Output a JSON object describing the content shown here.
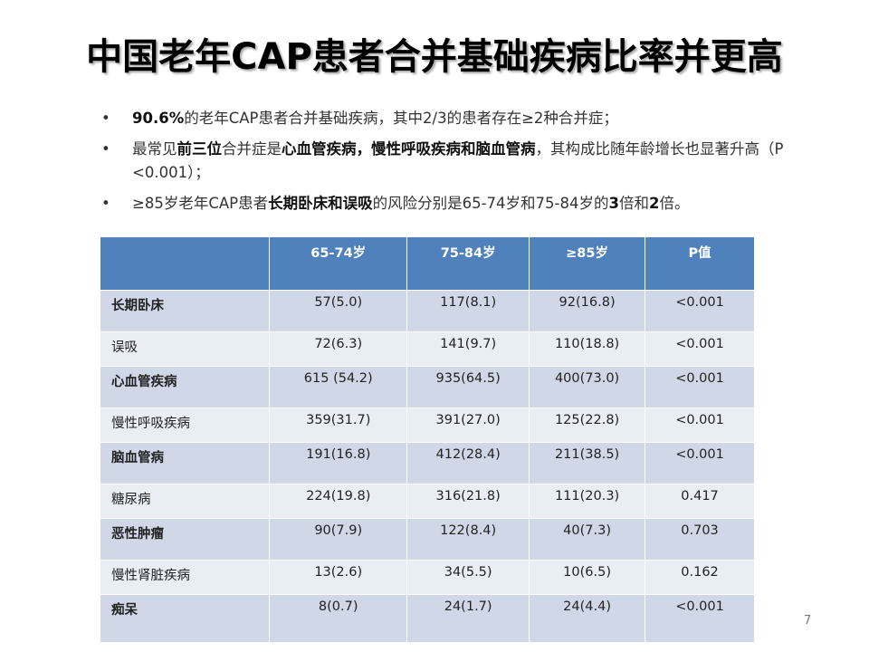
{
  "title": "中国老年CAP患者合并基础疾病比率并更高",
  "bullets": [
    {
      "parts": [
        {
          "text": "90.6%",
          "bold": true
        },
        {
          "text": "的老年CAP患者合并基础疾病，其中2/3的患者存在≥2种合并症；",
          "bold": false
        }
      ]
    },
    {
      "parts": [
        {
          "text": "最常见",
          "bold": false
        },
        {
          "text": "前三位",
          "bold": true
        },
        {
          "text": "合并症是",
          "bold": false
        },
        {
          "text": "心血管疾病，慢性呼吸疾病和脑血管病",
          "bold": true
        },
        {
          "text": "，其构成比随年龄增长也显著升高（P <0.001）；",
          "bold": false
        }
      ]
    },
    {
      "parts": [
        {
          "text": "≥85岁老年CAP患者",
          "bold": false
        },
        {
          "text": "长期卧床和误吸",
          "bold": true
        },
        {
          "text": "的风险分别是65-74岁和75-84岁的",
          "bold": false
        },
        {
          "text": "3",
          "bold": true
        },
        {
          "text": "倍和",
          "bold": false
        },
        {
          "text": "2",
          "bold": true
        },
        {
          "text": "倍。",
          "bold": false
        }
      ]
    }
  ],
  "table": {
    "headers": [
      "",
      "65-74岁",
      "75-84岁",
      "≥85岁",
      "P值"
    ],
    "rows": [
      {
        "label": "长期卧床",
        "bold": true,
        "cells": [
          "57(5.0)",
          "117(8.1)",
          "92(16.8)",
          "<0.001"
        ]
      },
      {
        "label": "误吸",
        "bold": false,
        "cells": [
          "72(6.3)",
          "141(9.7)",
          "110(18.8)",
          "<0.001"
        ]
      },
      {
        "label": "心血管疾病",
        "bold": true,
        "cells": [
          "615 (54.2)",
          "935(64.5)",
          "400(73.0)",
          "<0.001"
        ]
      },
      {
        "label": "慢性呼吸疾病",
        "bold": false,
        "cells": [
          "359(31.7)",
          "391(27.0)",
          "125(22.8)",
          "<0.001"
        ]
      },
      {
        "label": "脑血管病",
        "bold": true,
        "cells": [
          "191(16.8)",
          "412(28.4)",
          "211(38.5)",
          "<0.001"
        ]
      },
      {
        "label": "糖尿病",
        "bold": false,
        "cells": [
          "224(19.8)",
          "316(21.8)",
          "111(20.3)",
          "0.417"
        ]
      },
      {
        "label": "恶性肿瘤",
        "bold": true,
        "cells": [
          "90(7.9)",
          "122(8.4)",
          "40(7.3)",
          "0.703"
        ]
      },
      {
        "label": "慢性肾脏疾病",
        "bold": false,
        "cells": [
          "13(2.6)",
          "34(5.5)",
          "10(6.5)",
          "0.162"
        ]
      },
      {
        "label": "痴呆",
        "bold": true,
        "cells": [
          "8(0.7)",
          "24(1.7)",
          "24(4.4)",
          "<0.001"
        ]
      }
    ]
  },
  "page_number": "7",
  "colors": {
    "header_bg": "#4f81bd",
    "row_dark": "#d0d8e8",
    "row_light": "#e9edf4"
  }
}
